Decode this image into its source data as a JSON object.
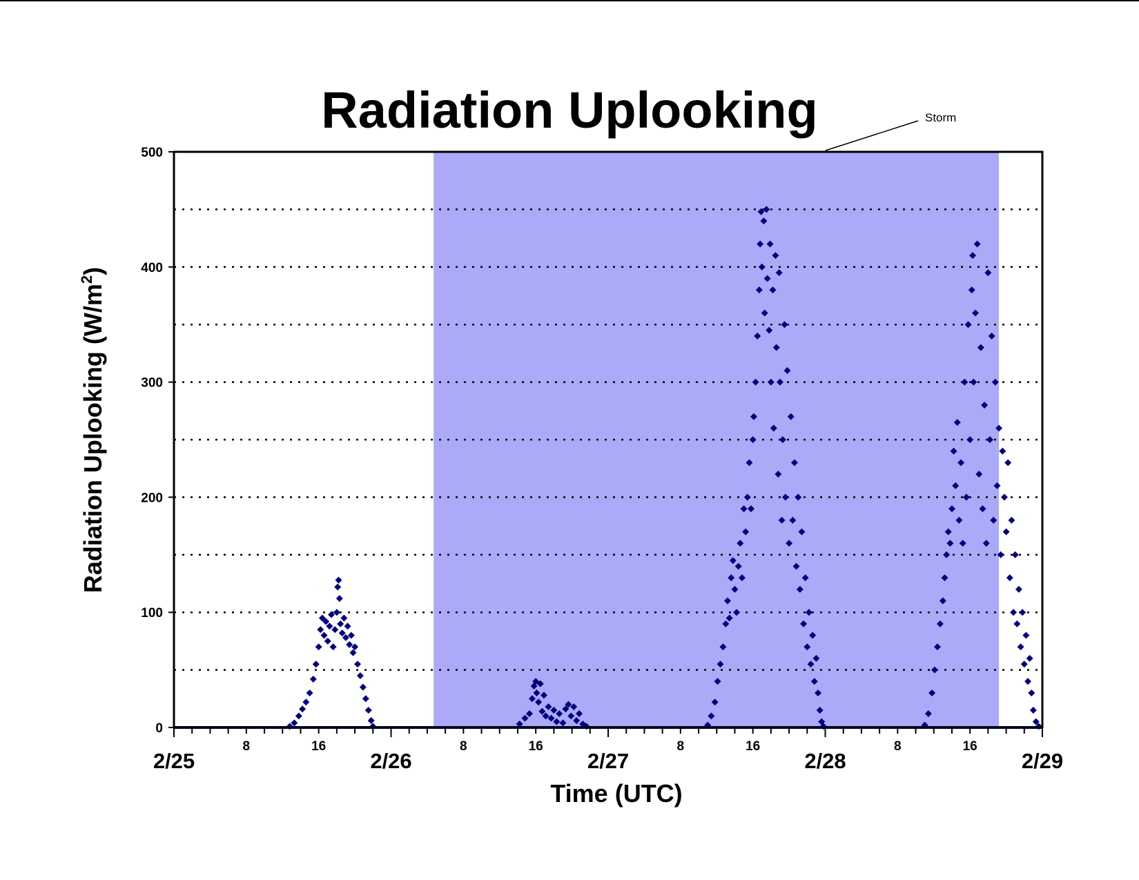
{
  "chart_data": {
    "type": "scatter",
    "title": "Radiation Uplooking",
    "xlabel": "Time (UTC)",
    "ylabel": {
      "text": "Radiation Uplooking (W/m",
      "sup": "2",
      "close": ")"
    },
    "ylim": [
      0,
      500
    ],
    "y_ticks": [
      "0",
      "100",
      "200",
      "300",
      "400",
      "500"
    ],
    "y_gridlines": [
      50,
      100,
      150,
      200,
      250,
      300,
      350,
      400,
      450
    ],
    "grid": "horizontal dotted",
    "x_unit": "hours since 2/25 00 UTC",
    "xlim": [
      0,
      96
    ],
    "x_major_ticks": [
      {
        "x": 0,
        "label": "2/25"
      },
      {
        "x": 24,
        "label": "2/26"
      },
      {
        "x": 48,
        "label": "2/27"
      },
      {
        "x": 72,
        "label": "2/28"
      },
      {
        "x": 96,
        "label": "2/29"
      }
    ],
    "x_minor_labels": [
      {
        "x": 8,
        "label": "8"
      },
      {
        "x": 16,
        "label": "16"
      },
      {
        "x": 32,
        "label": "8"
      },
      {
        "x": 40,
        "label": "16"
      },
      {
        "x": 56,
        "label": "8"
      },
      {
        "x": 64,
        "label": "16"
      },
      {
        "x": 80,
        "label": "8"
      },
      {
        "x": 88,
        "label": "16"
      }
    ],
    "shaded_region": {
      "x_start": 28.7,
      "x_end": 91.2,
      "label": "Storm",
      "color": "#aaaaf8"
    },
    "series": [
      {
        "color": "#000080",
        "marker": "diamond",
        "points": [
          [
            12.8,
            1
          ],
          [
            13.3,
            4
          ],
          [
            13.8,
            10
          ],
          [
            14.2,
            16
          ],
          [
            14.6,
            22
          ],
          [
            15.0,
            30
          ],
          [
            15.4,
            42
          ],
          [
            15.7,
            55
          ],
          [
            16.0,
            70
          ],
          [
            16.2,
            85
          ],
          [
            16.4,
            95
          ],
          [
            16.6,
            80
          ],
          [
            16.8,
            92
          ],
          [
            17.0,
            75
          ],
          [
            17.2,
            88
          ],
          [
            17.4,
            98
          ],
          [
            17.6,
            70
          ],
          [
            17.8,
            85
          ],
          [
            18.0,
            100
          ],
          [
            18.1,
            122
          ],
          [
            18.2,
            128
          ],
          [
            18.3,
            112
          ],
          [
            18.4,
            90
          ],
          [
            18.6,
            82
          ],
          [
            18.8,
            95
          ],
          [
            19.0,
            78
          ],
          [
            19.2,
            88
          ],
          [
            19.4,
            72
          ],
          [
            19.6,
            80
          ],
          [
            19.8,
            65
          ],
          [
            20.0,
            70
          ],
          [
            20.3,
            55
          ],
          [
            20.6,
            45
          ],
          [
            20.9,
            35
          ],
          [
            21.2,
            25
          ],
          [
            21.5,
            15
          ],
          [
            21.8,
            6
          ],
          [
            22.0,
            1
          ],
          [
            38.2,
            3
          ],
          [
            38.8,
            8
          ],
          [
            39.3,
            12
          ],
          [
            39.6,
            25
          ],
          [
            39.8,
            36
          ],
          [
            40.0,
            40
          ],
          [
            40.1,
            30
          ],
          [
            40.3,
            22
          ],
          [
            40.5,
            38
          ],
          [
            40.7,
            14
          ],
          [
            40.9,
            28
          ],
          [
            41.1,
            10
          ],
          [
            41.4,
            18
          ],
          [
            41.7,
            8
          ],
          [
            42.0,
            15
          ],
          [
            42.3,
            5
          ],
          [
            42.6,
            12
          ],
          [
            43.0,
            4
          ],
          [
            43.3,
            16
          ],
          [
            43.6,
            20
          ],
          [
            43.9,
            10
          ],
          [
            44.2,
            18
          ],
          [
            44.5,
            6
          ],
          [
            44.8,
            12
          ],
          [
            45.2,
            3
          ],
          [
            45.6,
            1
          ],
          [
            59.0,
            2
          ],
          [
            59.4,
            10
          ],
          [
            59.8,
            22
          ],
          [
            60.1,
            40
          ],
          [
            60.4,
            55
          ],
          [
            60.7,
            70
          ],
          [
            61.0,
            90
          ],
          [
            61.2,
            110
          ],
          [
            61.4,
            95
          ],
          [
            61.6,
            130
          ],
          [
            61.8,
            145
          ],
          [
            62.0,
            120
          ],
          [
            62.2,
            100
          ],
          [
            62.4,
            140
          ],
          [
            62.6,
            160
          ],
          [
            62.8,
            130
          ],
          [
            63.0,
            190
          ],
          [
            63.2,
            170
          ],
          [
            63.4,
            200
          ],
          [
            63.6,
            230
          ],
          [
            63.8,
            190
          ],
          [
            64.0,
            250
          ],
          [
            64.1,
            270
          ],
          [
            64.3,
            300
          ],
          [
            64.5,
            340
          ],
          [
            64.7,
            380
          ],
          [
            64.8,
            420
          ],
          [
            64.9,
            448
          ],
          [
            65.0,
            400
          ],
          [
            65.2,
            440
          ],
          [
            65.3,
            360
          ],
          [
            65.5,
            450
          ],
          [
            65.6,
            390
          ],
          [
            65.8,
            345
          ],
          [
            65.9,
            420
          ],
          [
            66.0,
            300
          ],
          [
            66.2,
            380
          ],
          [
            66.3,
            260
          ],
          [
            66.5,
            410
          ],
          [
            66.6,
            330
          ],
          [
            66.8,
            220
          ],
          [
            66.9,
            395
          ],
          [
            67.0,
            300
          ],
          [
            67.2,
            180
          ],
          [
            67.3,
            250
          ],
          [
            67.5,
            350
          ],
          [
            67.6,
            200
          ],
          [
            67.8,
            310
          ],
          [
            68.0,
            160
          ],
          [
            68.2,
            270
          ],
          [
            68.4,
            180
          ],
          [
            68.6,
            230
          ],
          [
            68.8,
            140
          ],
          [
            69.0,
            200
          ],
          [
            69.2,
            120
          ],
          [
            69.4,
            170
          ],
          [
            69.6,
            90
          ],
          [
            69.8,
            130
          ],
          [
            70.0,
            70
          ],
          [
            70.2,
            100
          ],
          [
            70.4,
            55
          ],
          [
            70.6,
            80
          ],
          [
            70.8,
            40
          ],
          [
            71.0,
            60
          ],
          [
            71.2,
            30
          ],
          [
            71.4,
            15
          ],
          [
            71.6,
            5
          ],
          [
            71.8,
            1
          ],
          [
            83.0,
            2
          ],
          [
            83.4,
            12
          ],
          [
            83.8,
            30
          ],
          [
            84.1,
            50
          ],
          [
            84.4,
            70
          ],
          [
            84.7,
            90
          ],
          [
            85.0,
            110
          ],
          [
            85.2,
            130
          ],
          [
            85.4,
            150
          ],
          [
            85.6,
            170
          ],
          [
            85.8,
            160
          ],
          [
            86.0,
            190
          ],
          [
            86.2,
            240
          ],
          [
            86.4,
            210
          ],
          [
            86.6,
            265
          ],
          [
            86.8,
            180
          ],
          [
            87.0,
            230
          ],
          [
            87.2,
            160
          ],
          [
            87.4,
            300
          ],
          [
            87.6,
            200
          ],
          [
            87.8,
            350
          ],
          [
            88.0,
            250
          ],
          [
            88.2,
            380
          ],
          [
            88.3,
            410
          ],
          [
            88.4,
            300
          ],
          [
            88.6,
            360
          ],
          [
            88.8,
            420
          ],
          [
            89.0,
            220
          ],
          [
            89.2,
            330
          ],
          [
            89.4,
            190
          ],
          [
            89.6,
            280
          ],
          [
            89.8,
            160
          ],
          [
            90.0,
            395
          ],
          [
            90.2,
            250
          ],
          [
            90.4,
            340
          ],
          [
            90.6,
            180
          ],
          [
            90.8,
            300
          ],
          [
            91.0,
            210
          ],
          [
            91.2,
            260
          ],
          [
            91.4,
            150
          ],
          [
            91.6,
            240
          ],
          [
            91.8,
            200
          ],
          [
            92.0,
            170
          ],
          [
            92.2,
            230
          ],
          [
            92.4,
            130
          ],
          [
            92.6,
            180
          ],
          [
            92.8,
            100
          ],
          [
            93.0,
            150
          ],
          [
            93.2,
            90
          ],
          [
            93.4,
            120
          ],
          [
            93.6,
            70
          ],
          [
            93.8,
            100
          ],
          [
            94.0,
            55
          ],
          [
            94.2,
            80
          ],
          [
            94.4,
            40
          ],
          [
            94.6,
            60
          ],
          [
            94.8,
            30
          ],
          [
            95.0,
            15
          ],
          [
            95.3,
            5
          ],
          [
            95.6,
            1
          ]
        ]
      }
    ]
  }
}
